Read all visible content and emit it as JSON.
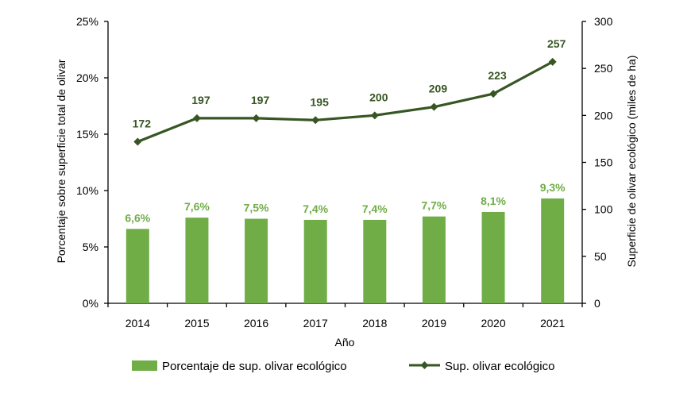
{
  "chart_data": {
    "type": "bar+line",
    "categories": [
      "2014",
      "2015",
      "2016",
      "2017",
      "2018",
      "2019",
      "2020",
      "2021"
    ],
    "series": [
      {
        "name": "Porcentaje de sup. olivar ecológico",
        "type": "bar",
        "axis": "left",
        "values": [
          6.6,
          7.6,
          7.5,
          7.4,
          7.4,
          7.7,
          8.1,
          9.3
        ],
        "labels": [
          "6,6%",
          "7,6%",
          "7,5%",
          "7,4%",
          "7,4%",
          "7,7%",
          "8,1%",
          "9,3%"
        ],
        "color": "#70ad47"
      },
      {
        "name": "Sup. olivar ecológico",
        "type": "line",
        "axis": "right",
        "marker": "diamond",
        "values": [
          172,
          197,
          197,
          195,
          200,
          209,
          223,
          257
        ],
        "labels": [
          "172",
          "197",
          "197",
          "195",
          "200",
          "209",
          "223",
          "257"
        ],
        "color": "#375623"
      }
    ],
    "xlabel": "Año",
    "ylabel_left": "Porcentaje sobre superficie total de olivar",
    "ylabel_right": "Superficie de olivar ecológico (miles de ha)",
    "ylim_left": [
      0,
      25
    ],
    "ylim_right": [
      0,
      300
    ],
    "left_ticks": [
      "0%",
      "5%",
      "10%",
      "15%",
      "20%",
      "25%"
    ],
    "right_ticks": [
      "0",
      "50",
      "100",
      "150",
      "200",
      "250",
      "300"
    ],
    "grid": false,
    "legend_position": "bottom"
  }
}
